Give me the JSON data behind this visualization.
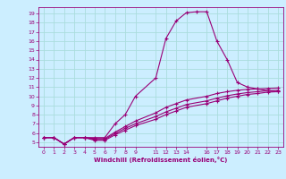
{
  "title": "",
  "xlabel": "Windchill (Refroidissement éolien,°C)",
  "background_color": "#cceeff",
  "grid_color": "#aadddd",
  "line_color": "#990077",
  "xlim": [
    -0.5,
    23.5
  ],
  "ylim": [
    4.5,
    19.7
  ],
  "xticks": [
    0,
    1,
    2,
    3,
    4,
    5,
    6,
    7,
    8,
    9,
    11,
    12,
    13,
    14,
    16,
    17,
    18,
    19,
    20,
    21,
    22,
    23
  ],
  "yticks": [
    5,
    6,
    7,
    8,
    9,
    10,
    11,
    12,
    13,
    14,
    15,
    16,
    17,
    18,
    19
  ],
  "curve1_x": [
    0,
    1,
    2,
    3,
    4,
    5,
    6,
    7,
    8,
    9,
    11,
    12,
    13,
    14,
    15,
    16,
    17,
    18,
    19,
    20,
    21,
    22,
    23
  ],
  "curve1_y": [
    5.5,
    5.5,
    4.8,
    5.5,
    5.5,
    5.5,
    5.5,
    7.0,
    8.0,
    10.0,
    12.0,
    16.3,
    18.2,
    19.1,
    19.2,
    19.2,
    16.0,
    14.0,
    11.5,
    11.0,
    10.8,
    10.6,
    10.5
  ],
  "curve2_x": [
    0,
    1,
    2,
    3,
    4,
    5,
    6,
    7,
    8,
    9,
    11,
    12,
    13,
    14,
    16,
    17,
    18,
    19,
    20,
    21,
    22,
    23
  ],
  "curve2_y": [
    5.5,
    5.5,
    4.8,
    5.5,
    5.5,
    5.2,
    5.2,
    5.8,
    6.3,
    6.8,
    7.5,
    8.0,
    8.4,
    8.8,
    9.2,
    9.5,
    9.8,
    10.0,
    10.2,
    10.3,
    10.45,
    10.5
  ],
  "curve3_x": [
    0,
    1,
    2,
    3,
    4,
    5,
    6,
    7,
    8,
    9,
    11,
    12,
    13,
    14,
    16,
    17,
    18,
    19,
    20,
    21,
    22,
    23
  ],
  "curve3_y": [
    5.5,
    5.5,
    4.8,
    5.5,
    5.5,
    5.3,
    5.3,
    5.95,
    6.5,
    7.0,
    7.8,
    8.3,
    8.7,
    9.1,
    9.5,
    9.8,
    10.05,
    10.25,
    10.4,
    10.5,
    10.6,
    10.65
  ],
  "curve4_x": [
    0,
    1,
    2,
    3,
    4,
    5,
    6,
    7,
    8,
    9,
    11,
    12,
    13,
    14,
    16,
    17,
    18,
    19,
    20,
    21,
    22,
    23
  ],
  "curve4_y": [
    5.5,
    5.5,
    4.8,
    5.5,
    5.5,
    5.4,
    5.4,
    6.1,
    6.7,
    7.3,
    8.2,
    8.8,
    9.2,
    9.6,
    10.0,
    10.3,
    10.5,
    10.65,
    10.75,
    10.8,
    10.85,
    10.9
  ]
}
